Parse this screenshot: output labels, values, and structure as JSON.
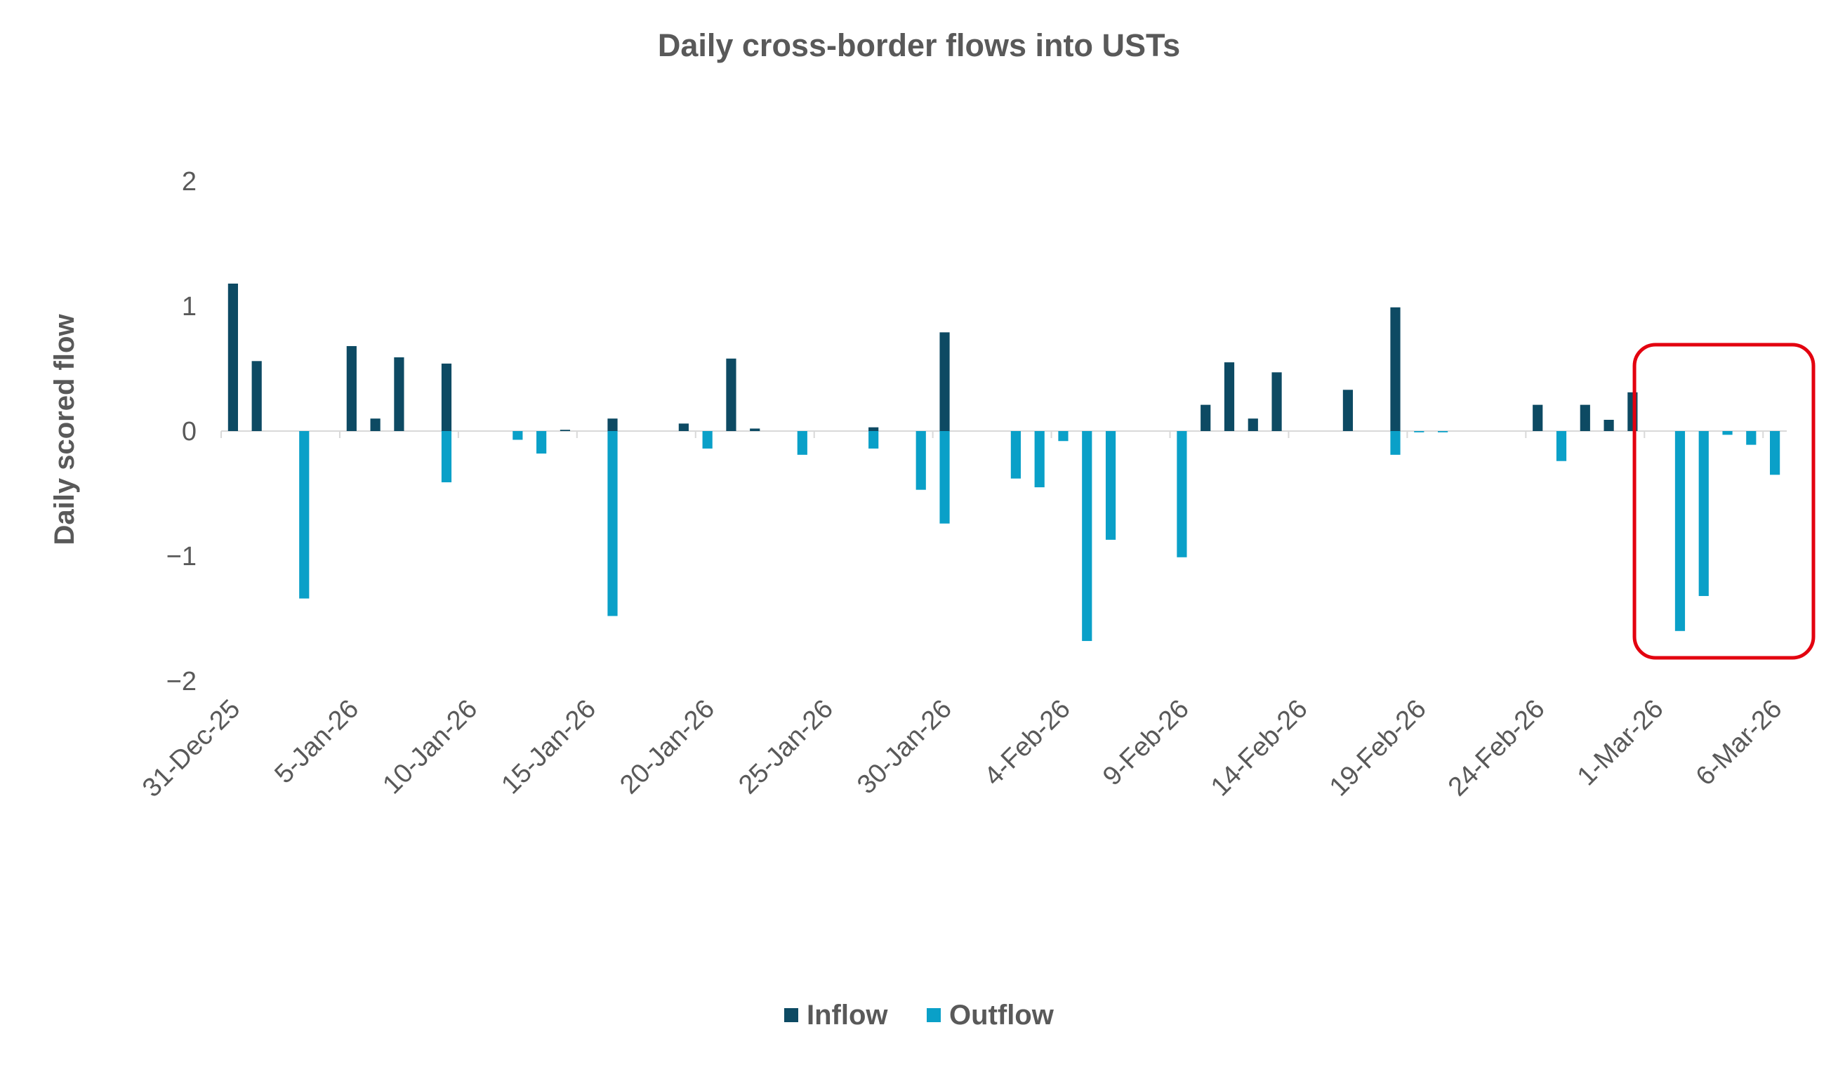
{
  "chart_data": {
    "type": "bar",
    "title": "Daily cross-border flows into USTs",
    "ylabel": "Daily scored flow",
    "xlabel": "",
    "ylim": [
      -2,
      2
    ],
    "yticks": [
      2,
      1,
      0,
      -1,
      -2
    ],
    "x_start": "2025-12-31",
    "x_end": "2026-03-06",
    "x_tick_labels": [
      "31-Dec-25",
      "5-Jan-26",
      "10-Jan-26",
      "15-Jan-26",
      "20-Jan-26",
      "25-Jan-26",
      "30-Jan-26",
      "4-Feb-26",
      "9-Feb-26",
      "14-Feb-26",
      "19-Feb-26",
      "24-Feb-26",
      "1-Mar-26",
      "6-Mar-26"
    ],
    "legend_position": "bottom",
    "grid": false,
    "highlight_box": {
      "from": "2026-03-02",
      "to": "2026-03-06",
      "color": "#e3000f"
    },
    "series": [
      {
        "name": "Inflow",
        "color": "#0d4a63",
        "points": [
          [
            "2025-12-31",
            1.18
          ],
          [
            "2026-01-01",
            0.56
          ],
          [
            "2026-01-05",
            0.68
          ],
          [
            "2026-01-06",
            0.1
          ],
          [
            "2026-01-07",
            0.59
          ],
          [
            "2026-01-09",
            0.54
          ],
          [
            "2026-01-14",
            0.01
          ],
          [
            "2026-01-16",
            0.1
          ],
          [
            "2026-01-19",
            0.06
          ],
          [
            "2026-01-21",
            0.58
          ],
          [
            "2026-01-22",
            0.02
          ],
          [
            "2026-01-27",
            0.03
          ],
          [
            "2026-01-30",
            0.79
          ],
          [
            "2026-02-10",
            0.21
          ],
          [
            "2026-02-11",
            0.55
          ],
          [
            "2026-02-12",
            0.1
          ],
          [
            "2026-02-13",
            0.47
          ],
          [
            "2026-02-16",
            0.33
          ],
          [
            "2026-02-18",
            0.99
          ],
          [
            "2026-02-24",
            0.21
          ],
          [
            "2026-02-26",
            0.21
          ],
          [
            "2026-02-27",
            0.09
          ],
          [
            "2026-02-28",
            0.31
          ]
        ]
      },
      {
        "name": "Outflow",
        "color": "#0aa0c8",
        "points": [
          [
            "2026-01-03",
            -1.34
          ],
          [
            "2026-01-09",
            -0.41
          ],
          [
            "2026-01-12",
            -0.07
          ],
          [
            "2026-01-13",
            -0.18
          ],
          [
            "2026-01-16",
            -1.48
          ],
          [
            "2026-01-20",
            -0.14
          ],
          [
            "2026-01-24",
            -0.19
          ],
          [
            "2026-01-27",
            -0.14
          ],
          [
            "2026-01-29",
            -0.47
          ],
          [
            "2026-01-30",
            -0.74
          ],
          [
            "2026-02-02",
            -0.38
          ],
          [
            "2026-02-03",
            -0.45
          ],
          [
            "2026-02-04",
            -0.08
          ],
          [
            "2026-02-05",
            -1.68
          ],
          [
            "2026-02-06",
            -0.87
          ],
          [
            "2026-02-09",
            -1.01
          ],
          [
            "2026-02-18",
            -0.19
          ],
          [
            "2026-02-19",
            -0.01
          ],
          [
            "2026-02-20",
            -0.01
          ],
          [
            "2026-02-25",
            -0.24
          ],
          [
            "2026-03-02",
            -1.6
          ],
          [
            "2026-03-03",
            -1.32
          ],
          [
            "2026-03-04",
            -0.03
          ],
          [
            "2026-03-05",
            -0.11
          ],
          [
            "2026-03-06",
            -0.35
          ]
        ]
      }
    ]
  }
}
